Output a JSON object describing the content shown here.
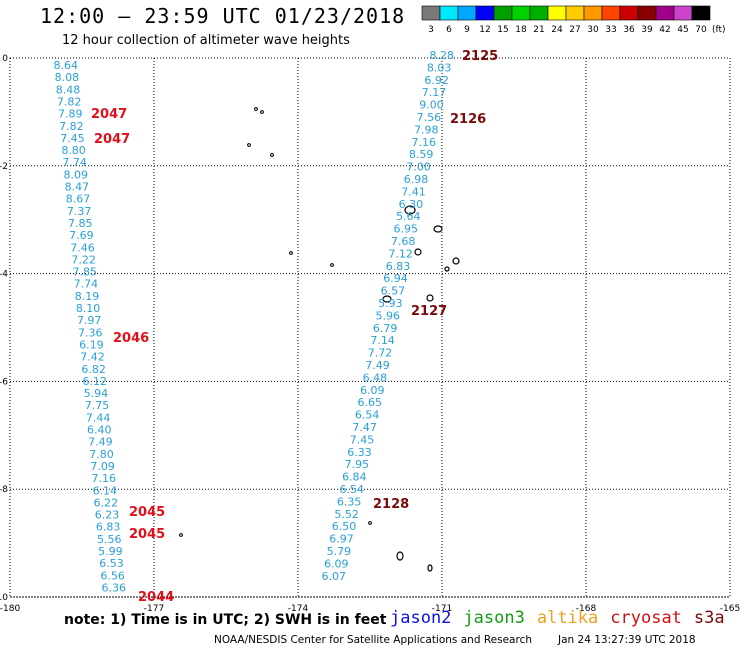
{
  "title": "12:00 — 23:59 UTC 01/23/2018",
  "subtitle": "12 hour collection of altimeter wave heights",
  "colorbar": {
    "colors": [
      "#7a7a7a",
      "#00e8ff",
      "#00a8ff",
      "#0000ff",
      "#00a000",
      "#00d200",
      "#00b000",
      "#ffff00",
      "#ffcc00",
      "#ff9900",
      "#ff4400",
      "#cc0000",
      "#880000",
      "#a0008a",
      "#cc44cc",
      "#000000"
    ],
    "labels": [
      "3",
      "6",
      "9",
      "12",
      "15",
      "18",
      "21",
      "24",
      "27",
      "30",
      "33",
      "36",
      "39",
      "42",
      "45",
      "70"
    ],
    "unit": "(ft)"
  },
  "axes": {
    "lon_ticks": [
      "-180",
      "-177",
      "-174",
      "-171",
      "-168",
      "-165"
    ],
    "lat_ticks": [
      "0",
      "-2",
      "-4",
      "-6",
      "-8",
      "-10"
    ],
    "lon_range": [
      -180,
      -165
    ],
    "lat_range": [
      -10,
      0
    ],
    "grid": "dotted"
  },
  "track_left": {
    "values": [
      "8.64",
      "8.08",
      "8.48",
      "7.82",
      "7.89",
      "7.82",
      "7.45",
      "8.80",
      "7.74",
      "8.09",
      "8.47",
      "8.67",
      "7.37",
      "7.85",
      "7.69",
      "7.46",
      "7.22",
      "7.85",
      "7.74",
      "8.19",
      "8.10",
      "7.97",
      "7.36",
      "6.19",
      "7.42",
      "6.82",
      "6.12",
      "5.94",
      "7.75",
      "7.44",
      "6.40",
      "7.49",
      "7.80",
      "7.09",
      "7.16",
      "6.14",
      "6.22",
      "6.23",
      "6.83",
      "5.56",
      "5.99",
      "6.53",
      "6.56",
      "6.36"
    ]
  },
  "track_right": {
    "values": [
      "8.28",
      "8.03",
      "6.92",
      "7.17",
      "9.00",
      "7.56",
      "7.98",
      "7.16",
      "8.59",
      "7.00",
      "6.98",
      "7.41",
      "6.30",
      "5.64",
      "6.95",
      "7.68",
      "7.12",
      "6.83",
      "6.94",
      "6.57",
      "5.93",
      "5.96",
      "6.79",
      "7.14",
      "7.72",
      "7.49",
      "6.48",
      "6.09",
      "6.65",
      "6.54",
      "7.47",
      "7.45",
      "6.33",
      "7.95",
      "6.84",
      "6.54",
      "6.35",
      "5.52",
      "6.50",
      "6.97",
      "5.79",
      "6.09",
      "6.07"
    ]
  },
  "passes": [
    {
      "label": "2047",
      "color": "#e0101a"
    },
    {
      "label": "2047",
      "color": "#e0101a"
    },
    {
      "label": "2046",
      "color": "#e0101a"
    },
    {
      "label": "2045",
      "color": "#e0101a"
    },
    {
      "label": "2045",
      "color": "#e0101a"
    },
    {
      "label": "2044",
      "color": "#e0101a"
    },
    {
      "label": "2125",
      "color": "#7a0a0a"
    },
    {
      "label": "2126",
      "color": "#7a0a0a"
    },
    {
      "label": "2127",
      "color": "#7a0a0a"
    },
    {
      "label": "2128",
      "color": "#7a0a0a"
    }
  ],
  "note": "note:  1) Time is in UTC;  2) SWH is in feet",
  "legend": [
    {
      "label": "jason2",
      "color": "#1010e0"
    },
    {
      "label": "jason3",
      "color": "#10a010"
    },
    {
      "label": "altika",
      "color": "#f0a020"
    },
    {
      "label": "cryosat",
      "color": "#d01010"
    },
    {
      "label": "s3a",
      "color": "#7a0a0a"
    }
  ],
  "credit": "NOAA/NESDIS Center for Satellite Applications and Research",
  "timestamp": "Jan 24 13:27:39 UTC 2018"
}
